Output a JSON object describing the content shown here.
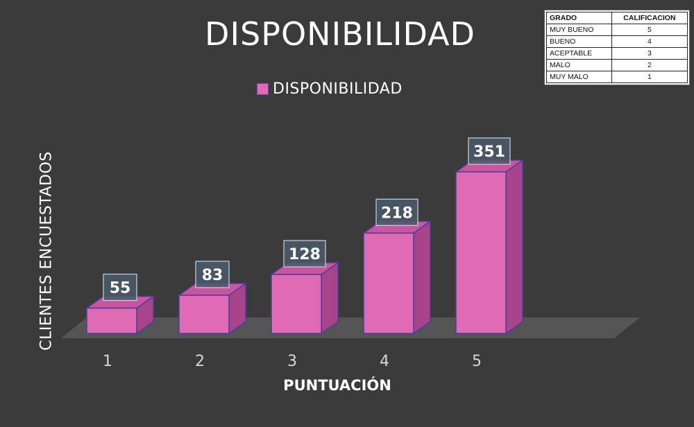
{
  "chart_data": {
    "type": "bar",
    "style": "3d-column",
    "title": "DISPONIBILIDAD",
    "xlabel": "PUNTUACIÓN",
    "ylabel": "CLIENTES ENCUESTADOS",
    "categories": [
      "1",
      "2",
      "3",
      "4",
      "5"
    ],
    "series": [
      {
        "name": "DISPONIBILIDAD",
        "values": [
          55,
          83,
          128,
          218,
          351
        ]
      }
    ],
    "data_labels": [
      "55",
      "83",
      "128",
      "218",
      "351"
    ],
    "legend_position": "top",
    "grid": false,
    "ylim": [
      0,
      351
    ],
    "colors": {
      "bar_front": "#e06ab3",
      "bar_side": "#a8458a",
      "bar_top": "#c9559f",
      "bar_outline": "#4a3f9a",
      "floor": "#555555",
      "background": "#3b3b3b",
      "label_box": "#4b5a6b",
      "text": "#ffffff"
    }
  },
  "grade_table": {
    "headers": [
      "GRADO",
      "CALIFICACION"
    ],
    "rows": [
      {
        "grade": "MUY BUENO",
        "score": "5"
      },
      {
        "grade": "BUENO",
        "score": "4"
      },
      {
        "grade": "ACEPTABLE",
        "score": "3"
      },
      {
        "grade": "MALO",
        "score": "2"
      },
      {
        "grade": "MUY MALO",
        "score": "1"
      }
    ]
  }
}
